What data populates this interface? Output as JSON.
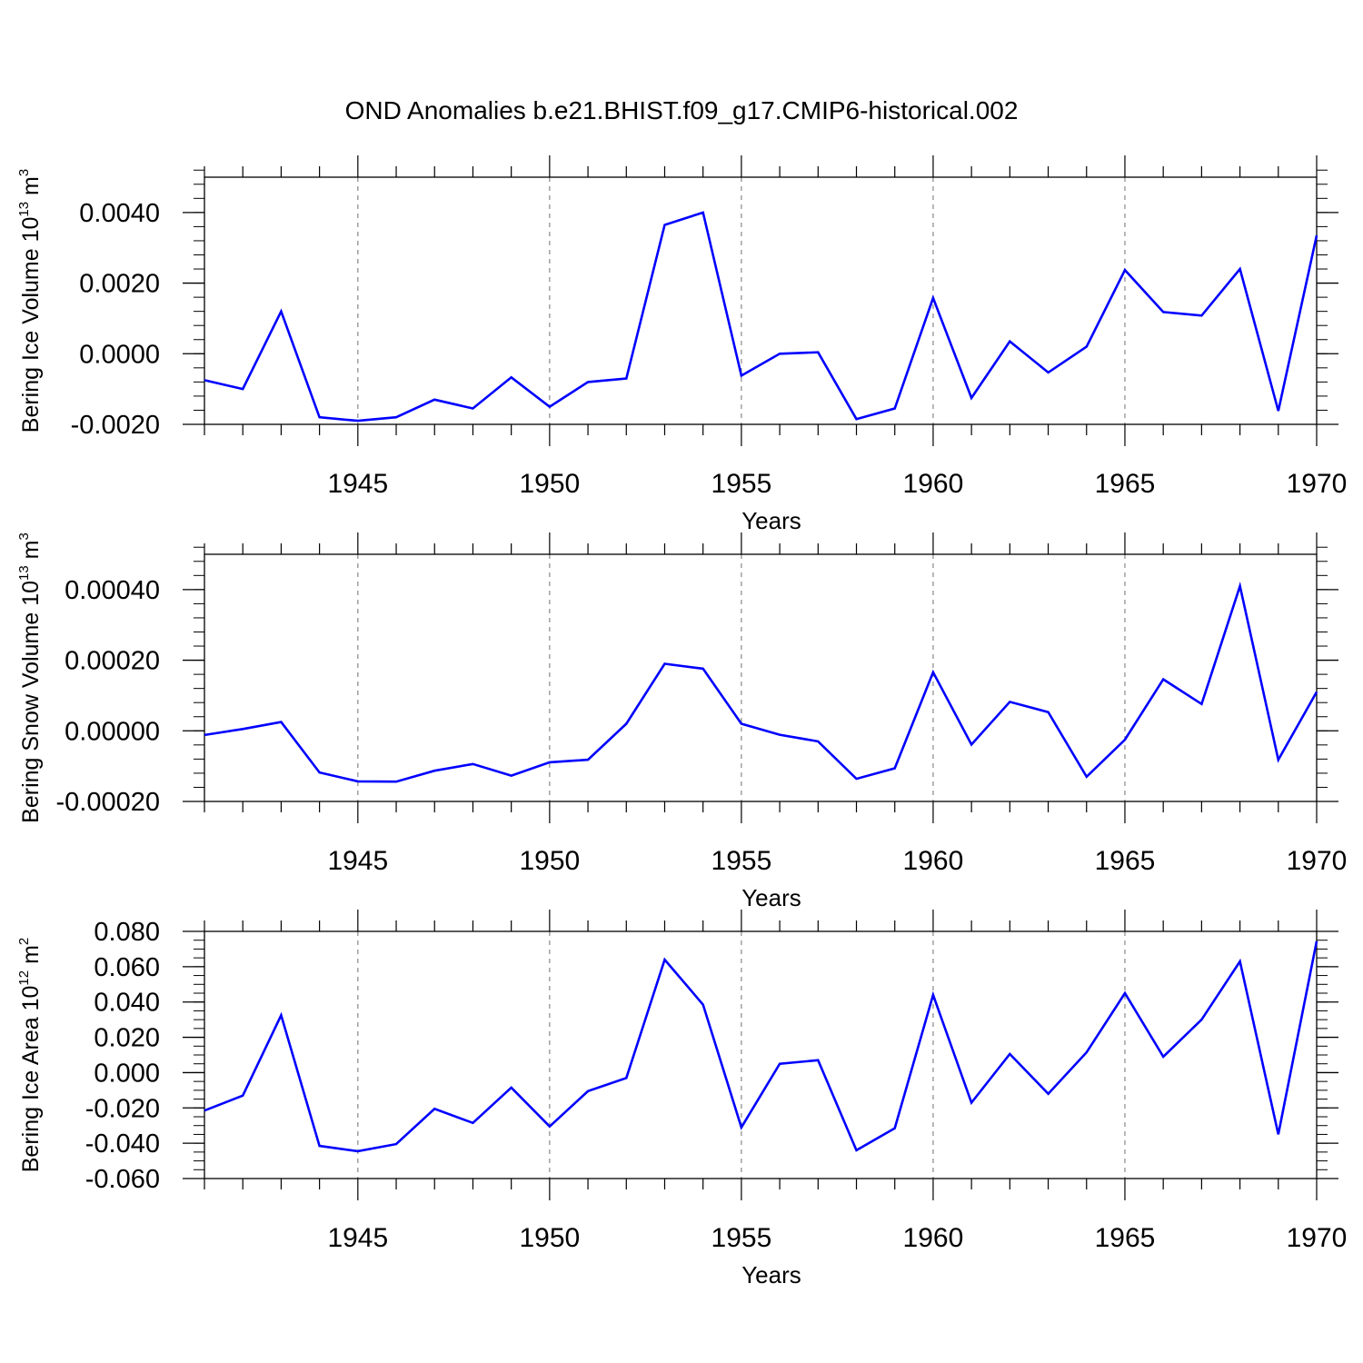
{
  "title": "OND Anomalies b.e21.BHIST.f09_g17.CMIP6-historical.002",
  "colors": {
    "series": "#0000ff",
    "axis": "#000000",
    "grid": "#888888"
  },
  "chart_data": [
    {
      "type": "line",
      "ylabel": "Bering Ice Volume 10",
      "ylabel_exp": "13",
      "ylabel_unit": " m",
      "ylabel_unit_exp": "3",
      "xlabel": "Years",
      "xlim": [
        1941,
        1970
      ],
      "ylim": [
        -0.002,
        0.005
      ],
      "y_ticks": [
        -0.002,
        0.0,
        0.002,
        0.004
      ],
      "y_tick_labels": [
        "-0.0020",
        "0.0000",
        "0.0020",
        "0.0040"
      ],
      "y_minor_step": 0.0004,
      "x_ticks": [
        1945,
        1950,
        1955,
        1960,
        1965,
        1970
      ],
      "x_tick_labels": [
        "1945",
        "1950",
        "1955",
        "1960",
        "1965",
        "1970"
      ],
      "grid": "vertical dashed at major x ticks",
      "series": [
        {
          "name": "Bering Ice Volume",
          "x": [
            1941,
            1942,
            1943,
            1944,
            1945,
            1946,
            1947,
            1948,
            1949,
            1950,
            1951,
            1952,
            1953,
            1954,
            1955,
            1956,
            1957,
            1958,
            1959,
            1960,
            1961,
            1962,
            1963,
            1964,
            1965,
            1966,
            1967,
            1968,
            1969,
            1970
          ],
          "values": [
            -0.00075,
            -0.001,
            0.0012,
            -0.0018,
            -0.0019,
            -0.0018,
            -0.0013,
            -0.00155,
            -0.00067,
            -0.0015,
            -0.0008,
            -0.0007,
            0.00365,
            0.004,
            -0.00062,
            0.0,
            4e-05,
            -0.00185,
            -0.00155,
            0.00158,
            -0.00125,
            0.00035,
            -0.00053,
            0.0002,
            0.00237,
            0.00118,
            0.00108,
            0.0024,
            -0.00162,
            0.00335
          ]
        }
      ]
    },
    {
      "type": "line",
      "ylabel": "Bering Snow Volume 10",
      "ylabel_exp": "13",
      "ylabel_unit": " m",
      "ylabel_unit_exp": "3",
      "xlabel": "Years",
      "xlim": [
        1941,
        1970
      ],
      "ylim": [
        -0.0002,
        0.0005
      ],
      "y_ticks": [
        -0.0002,
        0.0,
        0.0002,
        0.0004
      ],
      "y_tick_labels": [
        "-0.00020",
        "0.00000",
        "0.00020",
        "0.00040"
      ],
      "y_minor_step": 4e-05,
      "x_ticks": [
        1945,
        1950,
        1955,
        1960,
        1965,
        1970
      ],
      "x_tick_labels": [
        "1945",
        "1950",
        "1955",
        "1960",
        "1965",
        "1970"
      ],
      "grid": "vertical dashed at major x ticks",
      "series": [
        {
          "name": "Bering Snow Volume",
          "x": [
            1941,
            1942,
            1943,
            1944,
            1945,
            1946,
            1947,
            1948,
            1949,
            1950,
            1951,
            1952,
            1953,
            1954,
            1955,
            1956,
            1957,
            1958,
            1959,
            1960,
            1961,
            1962,
            1963,
            1964,
            1965,
            1966,
            1967,
            1968,
            1969,
            1970
          ],
          "values": [
            -1.2e-05,
            5e-06,
            2.5e-05,
            -0.000118,
            -0.000143,
            -0.000144,
            -0.000113,
            -9.4e-05,
            -0.000127,
            -8.9e-05,
            -8.2e-05,
            2e-05,
            0.00019,
            0.000176,
            2e-05,
            -1.1e-05,
            -3e-05,
            -0.000136,
            -0.000106,
            0.000166,
            -3.9e-05,
            8.2e-05,
            5.3e-05,
            -0.00013,
            -2.5e-05,
            0.000146,
            7.6e-05,
            0.00041,
            -8.2e-05,
            0.00011
          ]
        }
      ]
    },
    {
      "type": "line",
      "ylabel": "Bering Ice Area 10",
      "ylabel_exp": "12",
      "ylabel_unit": " m",
      "ylabel_unit_exp": "2",
      "xlabel": "Years",
      "xlim": [
        1941,
        1970
      ],
      "ylim": [
        -0.06,
        0.08
      ],
      "y_ticks": [
        -0.06,
        -0.04,
        -0.02,
        0.0,
        0.02,
        0.04,
        0.06,
        0.08
      ],
      "y_tick_labels": [
        "-0.060",
        "-0.040",
        "-0.020",
        "0.000",
        "0.020",
        "0.040",
        "0.060",
        "0.080"
      ],
      "y_minor_step": 0.005,
      "x_ticks": [
        1945,
        1950,
        1955,
        1960,
        1965,
        1970
      ],
      "x_tick_labels": [
        "1945",
        "1950",
        "1955",
        "1960",
        "1965",
        "1970"
      ],
      "grid": "vertical dashed at major x ticks",
      "series": [
        {
          "name": "Bering Ice Area",
          "x": [
            1941,
            1942,
            1943,
            1944,
            1945,
            1946,
            1947,
            1948,
            1949,
            1950,
            1951,
            1952,
            1953,
            1954,
            1955,
            1956,
            1957,
            1958,
            1959,
            1960,
            1961,
            1962,
            1963,
            1964,
            1965,
            1966,
            1967,
            1968,
            1969,
            1970
          ],
          "values": [
            -0.0215,
            -0.013,
            0.0325,
            -0.0415,
            -0.0445,
            -0.0405,
            -0.0205,
            -0.0285,
            -0.0085,
            -0.0305,
            -0.0105,
            -0.003,
            0.064,
            0.0385,
            -0.031,
            0.005,
            0.007,
            -0.044,
            -0.0315,
            0.044,
            -0.017,
            0.0105,
            -0.012,
            0.0115,
            0.045,
            0.009,
            0.03,
            0.063,
            -0.035,
            0.0745
          ]
        }
      ]
    }
  ]
}
